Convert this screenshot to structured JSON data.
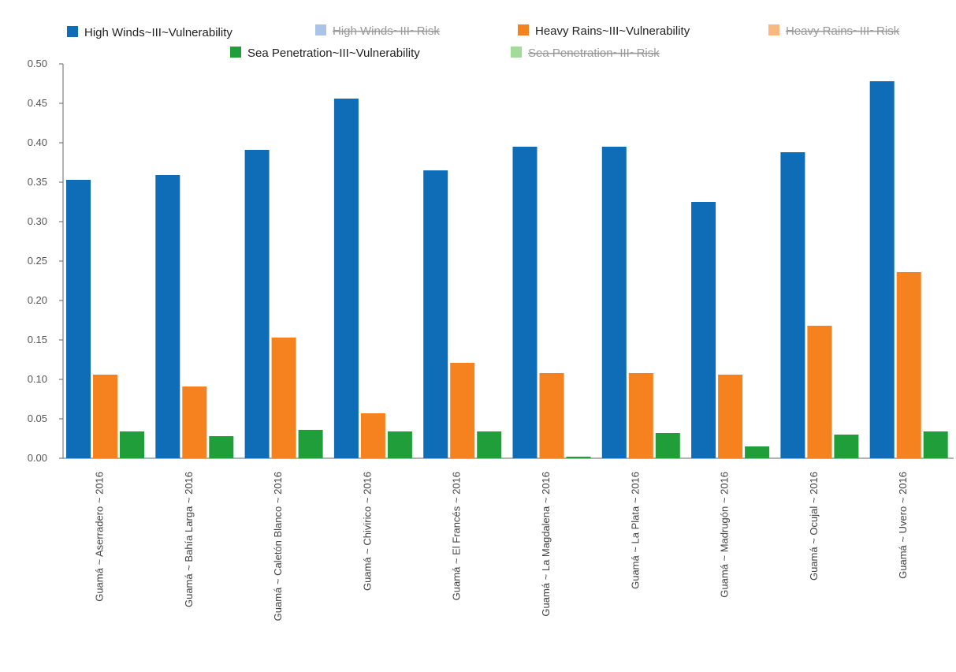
{
  "chart_data": {
    "type": "bar",
    "categories": [
      "Guamá ~ Aserradero ~ 2016",
      "Guamá ~ Bahía Larga ~ 2016",
      "Guamá ~ Caletón Blanco ~ 2016",
      "Guamá ~ Chivirico ~ 2016",
      "Guamá ~ El Francés ~ 2016",
      "Guamá ~ La Magdalena ~ 2016",
      "Guamá ~ La Plata ~ 2016",
      "Guamá ~ Madrugón ~ 2016",
      "Guamá ~ Ocujal ~ 2016",
      "Guamá ~ Uvero ~ 2016"
    ],
    "series": [
      {
        "name": "High Winds~III~Vulnerability",
        "color": "#0f6db8",
        "values": [
          0.353,
          0.359,
          0.391,
          0.456,
          0.365,
          0.395,
          0.395,
          0.325,
          0.388,
          0.478
        ]
      },
      {
        "name": "Heavy Rains~III~Vulnerability",
        "color": "#f5821f",
        "values": [
          0.106,
          0.091,
          0.153,
          0.057,
          0.121,
          0.108,
          0.108,
          0.106,
          0.168,
          0.236
        ]
      },
      {
        "name": "Sea Penetration~III~Vulnerability",
        "color": "#1f9e3a",
        "values": [
          0.034,
          0.028,
          0.036,
          0.034,
          0.034,
          0.002,
          0.032,
          0.015,
          0.03,
          0.034
        ]
      }
    ],
    "hidden_series": [
      {
        "name": "High Winds~III~Risk",
        "color": "#a9c4e6"
      },
      {
        "name": "Heavy Rains~III~Risk",
        "color": "#f7b97f"
      },
      {
        "name": "Sea Penetration~III~Risk",
        "color": "#a3dc9a"
      }
    ],
    "ylim": [
      0,
      0.5
    ],
    "yticks": [
      {
        "value": 0,
        "label": "0.00"
      },
      {
        "value": 0.05,
        "label": "0.05"
      },
      {
        "value": 0.1,
        "label": "0.10"
      },
      {
        "value": 0.15,
        "label": "0.15"
      },
      {
        "value": 0.2,
        "label": "0.20"
      },
      {
        "value": 0.25,
        "label": "0.25"
      },
      {
        "value": 0.3,
        "label": "0.30"
      },
      {
        "value": 0.35,
        "label": "0.35"
      },
      {
        "value": 0.4,
        "label": "0.40"
      },
      {
        "value": 0.45,
        "label": "0.45"
      },
      {
        "value": 0.5,
        "label": "0.50"
      }
    ]
  }
}
